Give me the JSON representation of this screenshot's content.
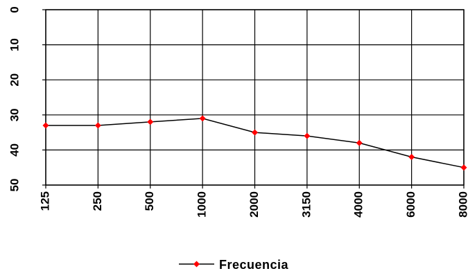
{
  "chart_data": {
    "type": "line",
    "title": "",
    "xlabel": "",
    "ylabel": "",
    "categories": [
      "125",
      "250",
      "500",
      "1000",
      "2000",
      "3150",
      "4000",
      "6000",
      "8000"
    ],
    "series": [
      {
        "name": "Frecuencia",
        "values": [
          33,
          33,
          32,
          31,
          35,
          36,
          38,
          42,
          45
        ],
        "line_color": "#000000",
        "marker_color": "#ff0000",
        "marker": "diamond"
      }
    ],
    "ylim": [
      0,
      50
    ],
    "y_inverted": true,
    "y_ticks": [
      0,
      10,
      20,
      30,
      40,
      50
    ],
    "grid": true,
    "legend": "bottom"
  }
}
